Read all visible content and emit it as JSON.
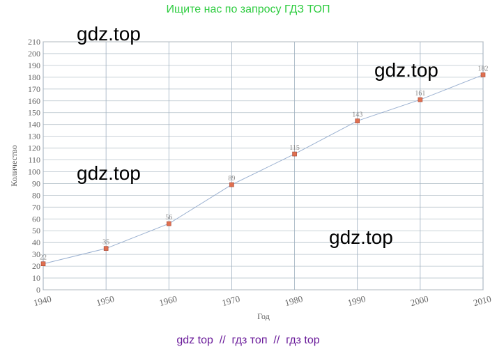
{
  "header": "Ищите нас по запросу ГДЗ ТОП",
  "footer": "gdz top  //  гдз топ  //  гдз top",
  "watermarks": [
    "gdz.top",
    "gdz.top",
    "gdz.top",
    "gdz.top"
  ],
  "chart_data": {
    "type": "line",
    "x_label": "Год",
    "y_label": "Количество",
    "x": [
      1940,
      1950,
      1960,
      1970,
      1980,
      1990,
      2000,
      2010
    ],
    "series": [
      {
        "name": "Количество",
        "color": "#e07050",
        "values": [
          22,
          35,
          56,
          89,
          115,
          143,
          161,
          182
        ]
      }
    ],
    "xlim": [
      1940,
      2010
    ],
    "xticks": [
      1940,
      1950,
      1960,
      1970,
      1980,
      1990,
      2000,
      2010
    ],
    "ylim": [
      0,
      210
    ],
    "yticks": [
      0,
      10,
      20,
      30,
      40,
      50,
      60,
      70,
      80,
      90,
      100,
      110,
      120,
      130,
      140,
      150,
      160,
      170,
      180,
      190,
      200,
      210
    ],
    "grid": true
  }
}
